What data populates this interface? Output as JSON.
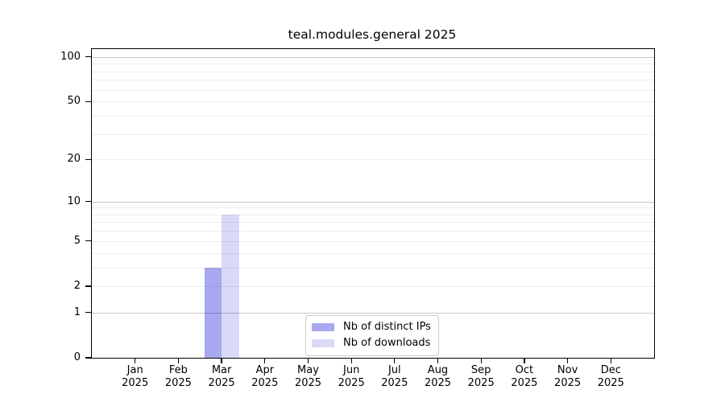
{
  "chart_data": {
    "type": "bar",
    "title": "teal.modules.general 2025",
    "categories": [
      "Jan",
      "Feb",
      "Mar",
      "Apr",
      "May",
      "Jun",
      "Jul",
      "Aug",
      "Sep",
      "Oct",
      "Nov",
      "Dec"
    ],
    "x_tick_year": "2025",
    "series": [
      {
        "name": "Nb of distinct IPs",
        "color": "#a8a8f0",
        "values": [
          0,
          0,
          3,
          0,
          0,
          0,
          0,
          0,
          0,
          0,
          0,
          0
        ]
      },
      {
        "name": "Nb of downloads",
        "color": "#d9d9f8",
        "values": [
          0,
          0,
          8,
          0,
          0,
          0,
          0,
          0,
          0,
          0,
          0,
          0
        ]
      }
    ],
    "y_axis": {
      "scale": "log1p",
      "tick_values": [
        0,
        1,
        2,
        5,
        10,
        20,
        50,
        100
      ],
      "major_gridlines": [
        1,
        10,
        100
      ],
      "minor_gridlines": [
        2,
        3,
        4,
        5,
        6,
        7,
        8,
        9,
        20,
        30,
        40,
        50,
        60,
        70,
        80,
        90
      ],
      "max_value": 113
    },
    "x_axis": {
      "months_shown": 12
    },
    "legend": {
      "position": "bottom-center"
    },
    "grid": true,
    "colors": {
      "background": "#ffffff",
      "axis": "#000000",
      "major_grid": "#c6c6c6",
      "minor_grid": "#ebebeb"
    }
  }
}
